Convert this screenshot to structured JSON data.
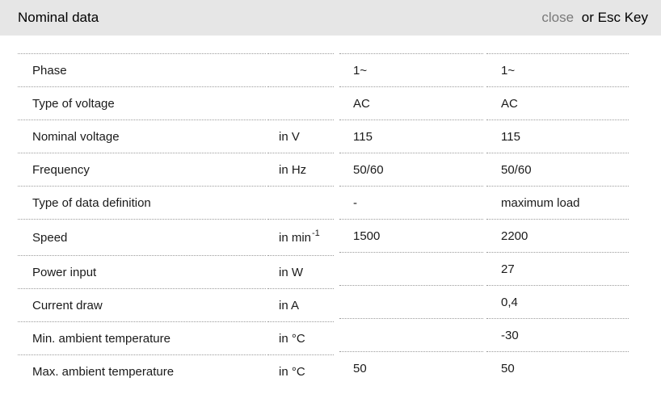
{
  "header": {
    "title": "Nominal data",
    "close_label": "close",
    "close_suffix": "or Esc Key"
  },
  "table": {
    "rows": [
      {
        "label": "Phase",
        "unit": "",
        "unit_sup": "",
        "v1": "1~",
        "v2": "1~"
      },
      {
        "label": "Type of voltage",
        "unit": "",
        "unit_sup": "",
        "v1": "AC",
        "v2": "AC"
      },
      {
        "label": "Nominal voltage",
        "unit": "in V",
        "unit_sup": "",
        "v1": "115",
        "v2": "115"
      },
      {
        "label": "Frequency",
        "unit": "in Hz",
        "unit_sup": "",
        "v1": "50/60",
        "v2": "50/60"
      },
      {
        "label": "Type of data definition",
        "unit": "",
        "unit_sup": "",
        "v1": "-",
        "v2": "maximum load"
      },
      {
        "label": "Speed",
        "unit": "in min",
        "unit_sup": "-1",
        "v1": "1500",
        "v2": "2200"
      },
      {
        "label": "Power input",
        "unit": "in W",
        "unit_sup": "",
        "v1": "",
        "v2": "27"
      },
      {
        "label": "Current draw",
        "unit": "in A",
        "unit_sup": "",
        "v1": "",
        "v2": "0,4"
      },
      {
        "label": "Min. ambient temperature",
        "unit": "in °C",
        "unit_sup": "",
        "v1": "",
        "v2": "-30"
      },
      {
        "label": "Max. ambient temperature",
        "unit": "in °C",
        "unit_sup": "",
        "v1": "50",
        "v2": "50"
      }
    ]
  },
  "colors": {
    "header_bg": "#e6e6e6",
    "close_text": "#7a7a7a",
    "row_border": "#9b9b9b",
    "text": "#1a1a1a"
  }
}
